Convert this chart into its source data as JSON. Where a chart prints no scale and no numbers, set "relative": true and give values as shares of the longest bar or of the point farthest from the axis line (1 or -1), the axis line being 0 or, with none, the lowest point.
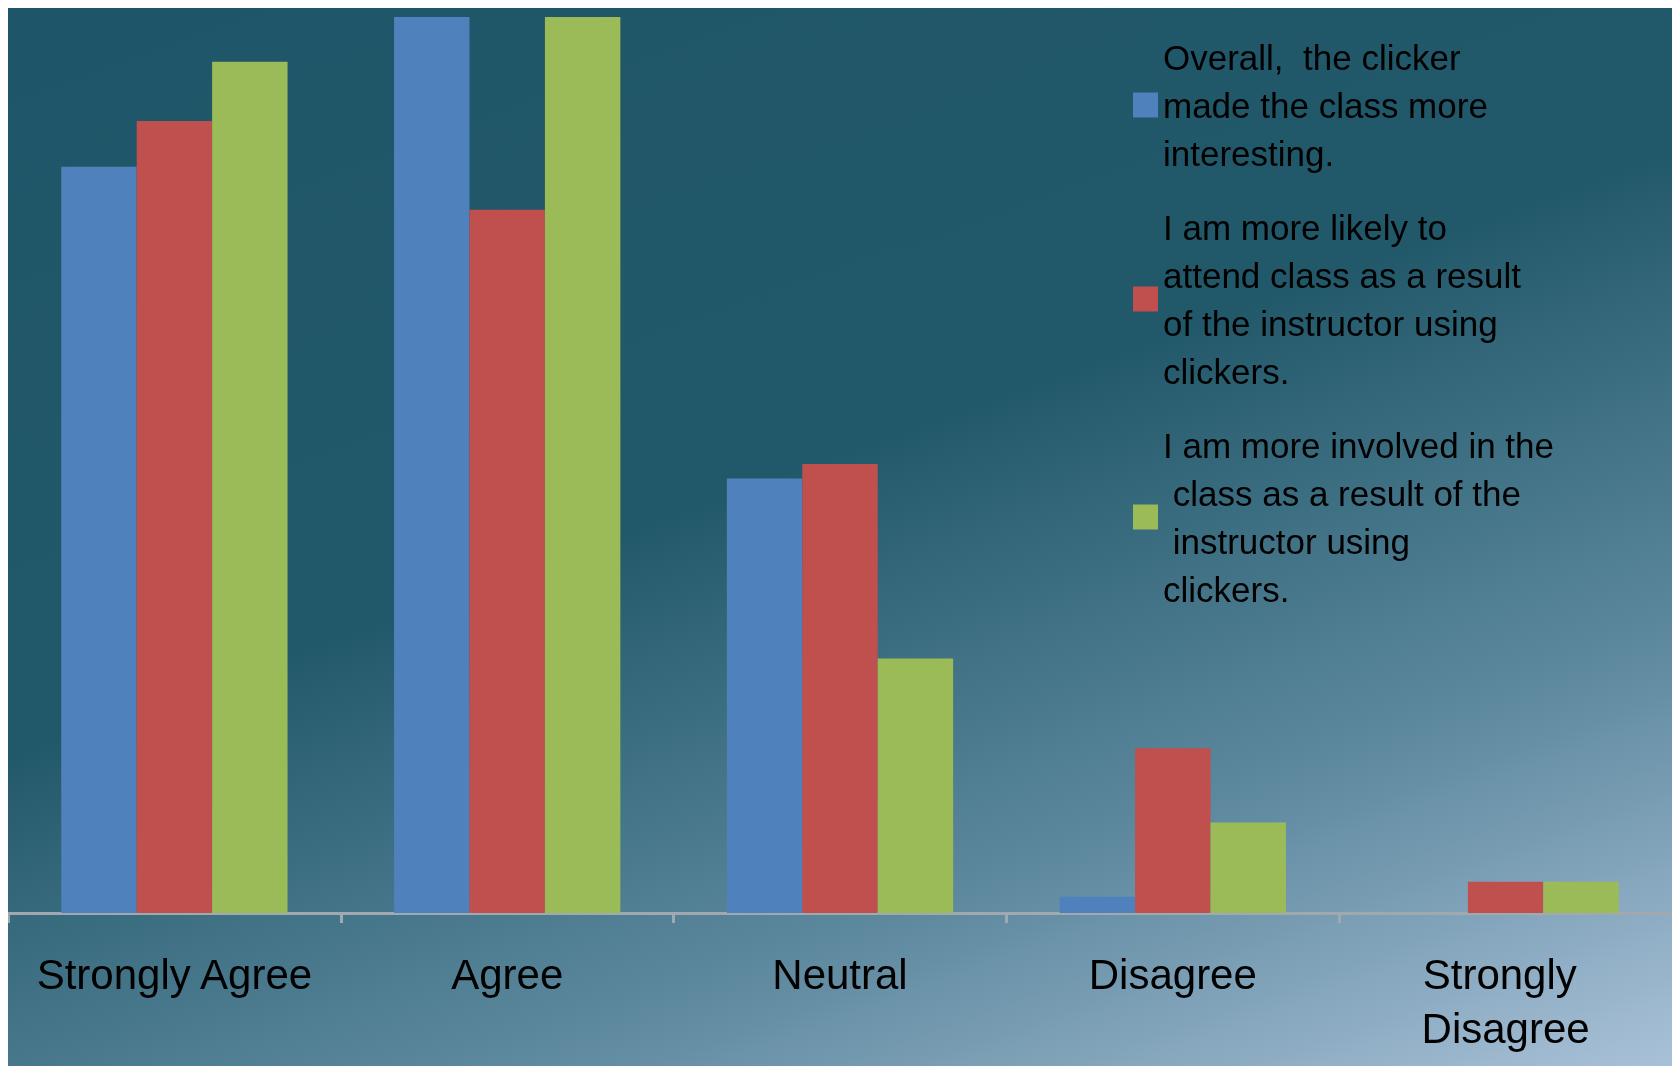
{
  "chart_data": {
    "type": "bar",
    "relative": true,
    "categories": [
      "Strongly Agree",
      "Agree",
      "Neutral",
      "Disagree",
      "Strongly Disagree"
    ],
    "series": [
      {
        "name": "Overall,  the clicker made the class more interesting.",
        "color": "#4f81bd",
        "values": [
          0.833,
          1,
          0.485,
          0.018,
          0
        ]
      },
      {
        "name": "I am more likely to attend class as a result of the instructor using clickers.",
        "color": "#c0504d",
        "values": [
          0.884,
          0.785,
          0.501,
          0.184,
          0.035
        ]
      },
      {
        "name": "I am more involved in the class as a result of the instructor using clickers.",
        "color": "#9bbb59",
        "values": [
          0.95,
          1,
          0.284,
          0.101,
          0.035
        ]
      }
    ],
    "legend": "top right"
  }
}
